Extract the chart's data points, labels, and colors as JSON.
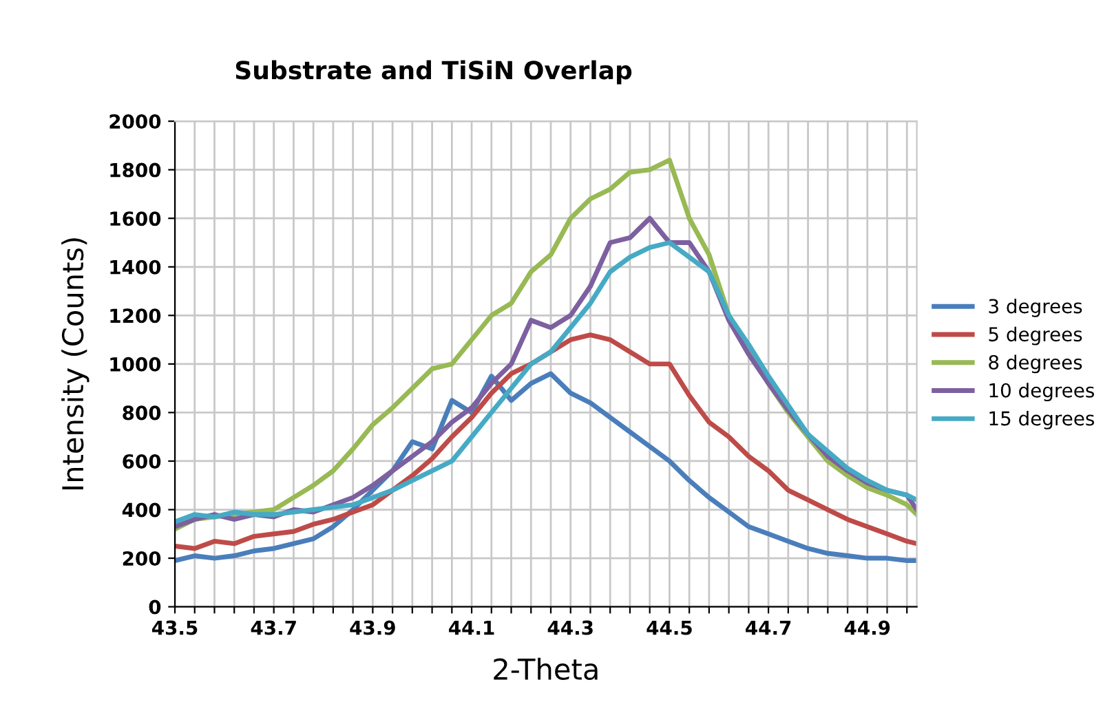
{
  "chart_data": {
    "type": "line",
    "title": "Substrate and TiSiN Overlap",
    "xlabel": "2-Theta",
    "ylabel": "Intensity (Counts)",
    "x": [
      43.5,
      43.54,
      43.58,
      43.62,
      43.66,
      43.7,
      43.74,
      43.78,
      43.82,
      43.86,
      43.9,
      43.94,
      43.98,
      44.02,
      44.06,
      44.1,
      44.14,
      44.18,
      44.22,
      44.26,
      44.3,
      44.34,
      44.38,
      44.42,
      44.46,
      44.5,
      44.54,
      44.58,
      44.62,
      44.66,
      44.7,
      44.74,
      44.78,
      44.82,
      44.86,
      44.9,
      44.94,
      44.98,
      45.0
    ],
    "series": [
      {
        "name": "3 degrees",
        "color": "#4a7ebb",
        "values": [
          190,
          210,
          200,
          210,
          230,
          240,
          260,
          280,
          330,
          400,
          480,
          560,
          680,
          650,
          850,
          800,
          950,
          850,
          920,
          960,
          880,
          840,
          780,
          720,
          660,
          600,
          520,
          450,
          390,
          330,
          300,
          270,
          240,
          220,
          210,
          200,
          200,
          190,
          190
        ]
      },
      {
        "name": "5 degrees",
        "color": "#be4b48",
        "values": [
          250,
          240,
          270,
          260,
          290,
          300,
          310,
          340,
          360,
          390,
          420,
          480,
          540,
          610,
          700,
          780,
          880,
          960,
          1000,
          1050,
          1100,
          1120,
          1100,
          1050,
          1000,
          1000,
          870,
          760,
          700,
          620,
          560,
          480,
          440,
          400,
          360,
          330,
          300,
          270,
          260
        ]
      },
      {
        "name": "8 degrees",
        "color": "#98b954",
        "values": [
          320,
          360,
          370,
          380,
          390,
          400,
          450,
          500,
          560,
          650,
          750,
          820,
          900,
          980,
          1000,
          1100,
          1200,
          1250,
          1380,
          1450,
          1600,
          1680,
          1720,
          1790,
          1800,
          1840,
          1600,
          1450,
          1200,
          1060,
          920,
          800,
          700,
          600,
          540,
          490,
          460,
          420,
          380
        ]
      },
      {
        "name": "10 degrees",
        "color": "#7d60a0",
        "values": [
          330,
          360,
          380,
          360,
          380,
          370,
          400,
          390,
          420,
          450,
          500,
          560,
          620,
          680,
          760,
          820,
          920,
          1000,
          1180,
          1150,
          1200,
          1320,
          1500,
          1520,
          1600,
          1500,
          1500,
          1380,
          1180,
          1040,
          920,
          810,
          710,
          620,
          560,
          510,
          480,
          460,
          400
        ]
      },
      {
        "name": "15 degrees",
        "color": "#46aac5",
        "values": [
          350,
          380,
          370,
          390,
          380,
          380,
          390,
          400,
          410,
          420,
          450,
          480,
          520,
          560,
          600,
          700,
          800,
          900,
          1000,
          1050,
          1150,
          1250,
          1380,
          1440,
          1480,
          1500,
          1440,
          1380,
          1200,
          1080,
          950,
          830,
          710,
          640,
          570,
          520,
          480,
          460,
          440
        ]
      }
    ],
    "xlim": [
      43.5,
      45.0
    ],
    "xticks": [
      {
        "value": 43.5,
        "label": "43.5"
      },
      {
        "value": 43.54,
        "label": null
      },
      {
        "value": 43.58,
        "label": null
      },
      {
        "value": 43.62,
        "label": null
      },
      {
        "value": 43.66,
        "label": null
      },
      {
        "value": 43.7,
        "label": "43.7"
      },
      {
        "value": 43.74,
        "label": null
      },
      {
        "value": 43.78,
        "label": null
      },
      {
        "value": 43.82,
        "label": null
      },
      {
        "value": 43.86,
        "label": null
      },
      {
        "value": 43.9,
        "label": "43.9"
      },
      {
        "value": 43.94,
        "label": null
      },
      {
        "value": 43.98,
        "label": null
      },
      {
        "value": 44.02,
        "label": null
      },
      {
        "value": 44.06,
        "label": null
      },
      {
        "value": 44.1,
        "label": "44.1"
      },
      {
        "value": 44.14,
        "label": null
      },
      {
        "value": 44.18,
        "label": null
      },
      {
        "value": 44.22,
        "label": null
      },
      {
        "value": 44.26,
        "label": null
      },
      {
        "value": 44.3,
        "label": "44.3"
      },
      {
        "value": 44.34,
        "label": null
      },
      {
        "value": 44.38,
        "label": null
      },
      {
        "value": 44.42,
        "label": null
      },
      {
        "value": 44.46,
        "label": null
      },
      {
        "value": 44.5,
        "label": "44.5"
      },
      {
        "value": 44.54,
        "label": null
      },
      {
        "value": 44.58,
        "label": null
      },
      {
        "value": 44.62,
        "label": null
      },
      {
        "value": 44.66,
        "label": null
      },
      {
        "value": 44.7,
        "label": "44.7"
      },
      {
        "value": 44.74,
        "label": null
      },
      {
        "value": 44.78,
        "label": null
      },
      {
        "value": 44.82,
        "label": null
      },
      {
        "value": 44.86,
        "label": null
      },
      {
        "value": 44.9,
        "label": "44.9"
      },
      {
        "value": 44.94,
        "label": null
      },
      {
        "value": 44.98,
        "label": null
      }
    ],
    "ylim": [
      0,
      2000
    ],
    "yticks": [
      0,
      200,
      400,
      600,
      800,
      1000,
      1200,
      1400,
      1600,
      1800,
      2000
    ],
    "grid": true,
    "legend": "right",
    "marker": "none",
    "line_style": "solid"
  }
}
